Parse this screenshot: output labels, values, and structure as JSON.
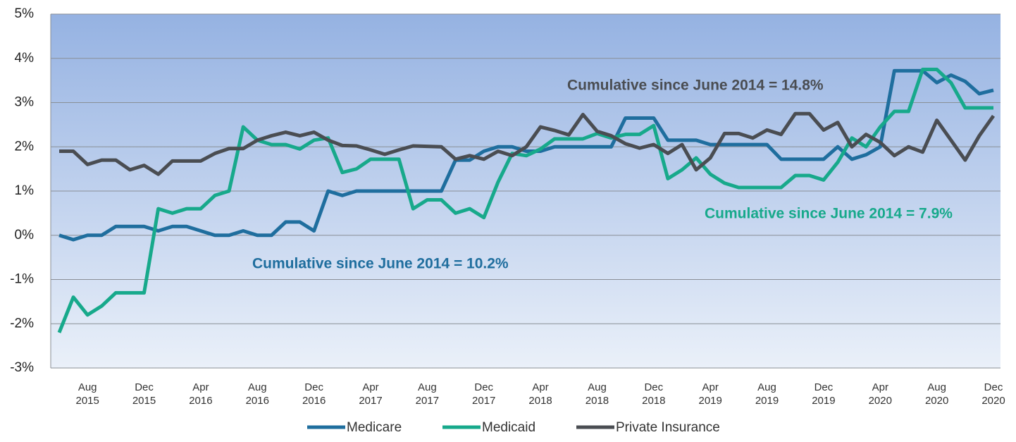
{
  "chart_data": {
    "type": "line",
    "categories": [
      null,
      null,
      "Aug 2015",
      null,
      null,
      null,
      "Dec 2015",
      null,
      null,
      null,
      "Apr 2016",
      null,
      null,
      null,
      "Aug 2016",
      null,
      null,
      null,
      "Dec 2016",
      null,
      null,
      null,
      "Apr 2017",
      null,
      null,
      null,
      "Aug 2017",
      null,
      null,
      null,
      "Dec 2017",
      null,
      null,
      null,
      "Apr 2018",
      null,
      null,
      null,
      "Aug 2018",
      null,
      null,
      null,
      "Dec 2018",
      null,
      null,
      null,
      "Apr 2019",
      null,
      null,
      null,
      "Aug 2019",
      null,
      null,
      null,
      "Dec 2019",
      null,
      null,
      null,
      "Apr 2020",
      null,
      null,
      null,
      "Aug 2020",
      null,
      null,
      null,
      "Dec 2020"
    ],
    "series": [
      {
        "name": "Medicare",
        "color": "#1f6e9e",
        "values": [
          0,
          -0.1,
          0,
          0,
          0.2,
          0.2,
          0.2,
          0.1,
          0.2,
          0.2,
          0.1,
          0,
          0,
          0.1,
          0,
          0,
          0.3,
          0.3,
          0.1,
          1.0,
          0.9,
          1.0,
          1.0,
          1.0,
          1.0,
          1.0,
          1.0,
          1.0,
          1.7,
          1.7,
          1.9,
          2.0,
          2.0,
          1.9,
          1.9,
          2.0,
          2.0,
          2.0,
          2.0,
          2.0,
          2.65,
          2.65,
          2.65,
          2.15,
          2.15,
          2.15,
          2.05,
          2.05,
          2.05,
          2.05,
          2.05,
          1.72,
          1.72,
          1.72,
          1.72,
          2.0,
          1.72,
          1.82,
          2.0,
          3.72,
          3.72,
          3.72,
          3.45,
          3.62,
          3.48,
          3.2,
          3.28
        ]
      },
      {
        "name": "Medicaid",
        "color": "#17a98b",
        "values": [
          -2.2,
          -1.4,
          -1.8,
          -1.6,
          -1.3,
          -1.3,
          -1.3,
          0.6,
          0.5,
          0.6,
          0.6,
          0.9,
          1.0,
          2.45,
          2.15,
          2.05,
          2.05,
          1.95,
          2.15,
          2.2,
          1.42,
          1.5,
          1.72,
          1.72,
          1.72,
          0.6,
          0.8,
          0.8,
          0.5,
          0.6,
          0.4,
          1.2,
          1.85,
          1.8,
          1.95,
          2.18,
          2.18,
          2.18,
          2.3,
          2.2,
          2.28,
          2.28,
          2.48,
          1.28,
          1.48,
          1.75,
          1.38,
          1.18,
          1.08,
          1.08,
          1.08,
          1.08,
          1.35,
          1.35,
          1.25,
          1.65,
          2.2,
          2.0,
          2.45,
          2.8,
          2.8,
          3.75,
          3.75,
          3.45,
          2.88,
          2.88,
          2.88
        ]
      },
      {
        "name": "Private Insurance",
        "color": "#4a4d52",
        "values": [
          1.9,
          1.9,
          1.6,
          1.7,
          1.7,
          1.48,
          1.58,
          1.38,
          1.68,
          1.68,
          1.68,
          1.85,
          1.96,
          1.96,
          2.15,
          2.25,
          2.33,
          2.25,
          2.33,
          2.15,
          2.03,
          2.02,
          1.93,
          1.83,
          1.93,
          2.02,
          2.01,
          2.0,
          1.72,
          1.8,
          1.72,
          1.9,
          1.8,
          2.0,
          2.45,
          2.37,
          2.27,
          2.73,
          2.35,
          2.25,
          2.07,
          1.97,
          2.05,
          1.85,
          2.05,
          1.48,
          1.75,
          2.3,
          2.3,
          2.2,
          2.38,
          2.28,
          2.75,
          2.75,
          2.38,
          2.55,
          2.0,
          2.28,
          2.1,
          1.8,
          2.0,
          1.88,
          2.6,
          2.15,
          1.7,
          2.25,
          2.7
        ]
      }
    ],
    "ylim": [
      -3,
      5
    ],
    "yticks": [
      {
        "value": -3,
        "label": "-3%"
      },
      {
        "value": -2,
        "label": "-2%"
      },
      {
        "value": -1,
        "label": "-1%"
      },
      {
        "value": 0,
        "label": "0%"
      },
      {
        "value": 1,
        "label": "1%"
      },
      {
        "value": 2,
        "label": "2%"
      },
      {
        "value": 3,
        "label": "3%"
      },
      {
        "value": 4,
        "label": "4%"
      },
      {
        "value": 5,
        "label": "5%"
      }
    ],
    "grid": true,
    "legend": "bottom",
    "annotations": [
      {
        "text": "Cumulative since June 2014 = 14.8%",
        "color": "#4a4d52"
      },
      {
        "text": "Cumulative since June 2014 = 7.9%",
        "color": "#17a98b"
      },
      {
        "text": "Cumulative since June 2014 = 10.2%",
        "color": "#1f6e9e"
      }
    ]
  }
}
